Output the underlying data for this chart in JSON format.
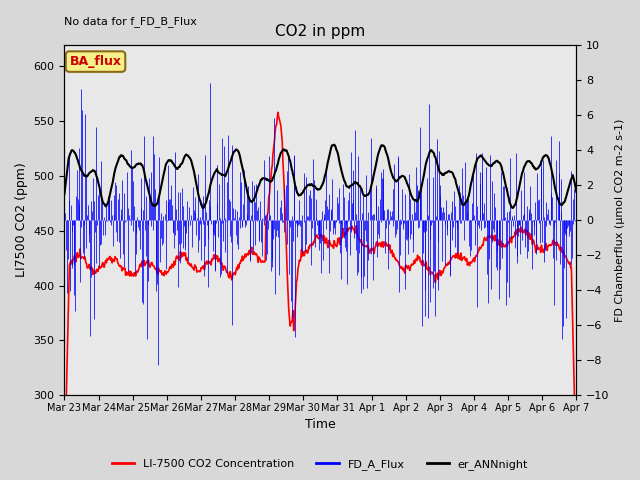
{
  "title": "CO2 in ppm",
  "top_left_text": "No data for f_FD_B_Flux",
  "xlabel": "Time",
  "ylabel_left": "LI7500 CO2 (ppm)",
  "ylabel_right": "FD Chamberflux (μmol CO2 m-2 s-1)",
  "ylim_left": [
    300,
    620
  ],
  "ylim_right": [
    -10,
    10
  ],
  "bg_color": "#e8e8e8",
  "legend_label_ba": "BA_flux",
  "legend_label_red": "LI-7500 CO2 Concentration",
  "legend_label_blue": "FD_A_Flux",
  "legend_label_black": "er_ANNnight",
  "xtick_labels": [
    "Mar 23",
    "Mar 24",
    "Mar 25",
    "Mar 26",
    "Mar 27",
    "Mar 28",
    "Mar 29",
    "Mar 30",
    "Mar 31",
    "Apr 1",
    "Apr 2",
    "Apr 3",
    "Apr 4",
    "Apr 5",
    "Apr 6",
    "Apr 7"
  ],
  "days_total": 15,
  "n_points": 720
}
